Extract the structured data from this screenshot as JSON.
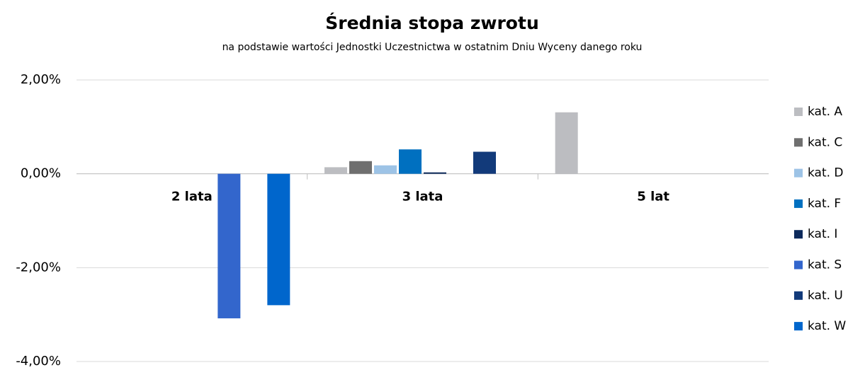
{
  "chart_data": {
    "type": "bar",
    "title": "Średnia stopa zwrotu",
    "subtitle": "na podstawie wartości Jednostki Uczestnictwa w ostatnim Dniu Wyceny danego roku",
    "categories": [
      "2 lata",
      "3 lata",
      "5 lat"
    ],
    "series": [
      {
        "name": "kat. A",
        "color": "#bcbdc1",
        "values": [
          null,
          0.14,
          1.31
        ]
      },
      {
        "name": "kat. C",
        "color": "#6f6f6f",
        "values": [
          null,
          0.27,
          null
        ]
      },
      {
        "name": "kat. D",
        "color": "#9dc3e6",
        "values": [
          null,
          0.18,
          null
        ]
      },
      {
        "name": "kat. F",
        "color": "#0070c0",
        "values": [
          null,
          0.52,
          null
        ]
      },
      {
        "name": "kat. I",
        "color": "#0d2a5c",
        "values": [
          null,
          0.03,
          null
        ]
      },
      {
        "name": "kat. S",
        "color": "#3366cc",
        "values": [
          -3.08,
          null,
          null
        ]
      },
      {
        "name": "kat. U",
        "color": "#123a7a",
        "values": [
          null,
          0.47,
          null
        ]
      },
      {
        "name": "kat. W",
        "color": "#0066cc",
        "values": [
          -2.8,
          null,
          null
        ]
      }
    ],
    "ylim": [
      -4,
      2
    ],
    "yticks": [
      {
        "value": -4,
        "label": "-4,00%"
      },
      {
        "value": -2,
        "label": "-2,00%"
      },
      {
        "value": 0,
        "label": "0,00%"
      },
      {
        "value": 2,
        "label": "2,00%"
      }
    ],
    "grid": true,
    "legend": "right"
  }
}
